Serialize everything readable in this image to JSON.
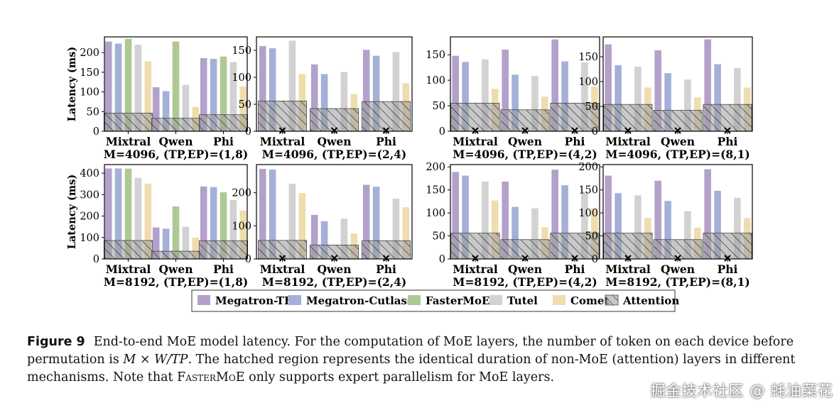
{
  "chart_data": [
    {
      "type": "bar",
      "title": "M=4096, (TP,EP)=(1,8)",
      "ylabel": "Latency (ms)",
      "ylim": [
        0,
        240
      ],
      "yticks": [
        0,
        50,
        100,
        150,
        200
      ],
      "categories": [
        "Mixtral",
        "Qwen",
        "Phi"
      ],
      "series": [
        {
          "name": "Megatron-TE",
          "values": [
            228,
            112,
            186
          ]
        },
        {
          "name": "Megatron-Cutlass",
          "values": [
            223,
            102,
            184
          ]
        },
        {
          "name": "FasterMoE",
          "values": [
            235,
            228,
            190
          ]
        },
        {
          "name": "Tutel",
          "values": [
            220,
            118,
            176
          ]
        },
        {
          "name": "Comet",
          "values": [
            178,
            62,
            114
          ]
        }
      ],
      "attention": [
        46,
        33,
        42
      ],
      "unsupported": []
    },
    {
      "type": "bar",
      "title": "M=4096, (TP,EP)=(2,4)",
      "ylabel": "",
      "ylim": [
        0,
        175
      ],
      "yticks": [
        0,
        50,
        100,
        150
      ],
      "categories": [
        "Mixtral",
        "Qwen",
        "Phi"
      ],
      "series": [
        {
          "name": "Megatron-TE",
          "values": [
            158,
            124,
            151
          ]
        },
        {
          "name": "Megatron-Cutlass",
          "values": [
            154,
            106,
            140
          ]
        },
        {
          "name": "FasterMoE",
          "values": [
            0,
            0,
            0
          ]
        },
        {
          "name": "Tutel",
          "values": [
            168,
            110,
            147
          ]
        },
        {
          "name": "Comet",
          "values": [
            106,
            69,
            89
          ]
        }
      ],
      "attention": [
        56,
        42,
        55
      ],
      "unsupported": [
        0,
        1,
        2
      ]
    },
    {
      "type": "bar",
      "title": "M=4096, (TP,EP)=(4,2)",
      "ylabel": "",
      "ylim": [
        0,
        185
      ],
      "yticks": [
        0,
        50,
        100,
        150
      ],
      "categories": [
        "Mixtral",
        "Qwen",
        "Phi"
      ],
      "series": [
        {
          "name": "Megatron-TE",
          "values": [
            148,
            160,
            180
          ]
        },
        {
          "name": "Megatron-Cutlass",
          "values": [
            136,
            111,
            137
          ]
        },
        {
          "name": "FasterMoE",
          "values": [
            0,
            0,
            0
          ]
        },
        {
          "name": "Tutel",
          "values": [
            141,
            108,
            135
          ]
        },
        {
          "name": "Comet",
          "values": [
            83,
            68,
            87
          ]
        }
      ],
      "attention": [
        55,
        42,
        55
      ],
      "unsupported": [
        0,
        1,
        2
      ]
    },
    {
      "type": "bar",
      "title": "M=4096, (TP,EP)=(8,1)",
      "ylabel": "",
      "ylim": [
        0,
        190
      ],
      "yticks": [
        0,
        50,
        100,
        150
      ],
      "categories": [
        "Mixtral",
        "Qwen",
        "Phi"
      ],
      "series": [
        {
          "name": "Megatron-TE",
          "values": [
            175,
            163,
            185
          ]
        },
        {
          "name": "Megatron-Cutlass",
          "values": [
            133,
            117,
            135
          ]
        },
        {
          "name": "FasterMoE",
          "values": [
            0,
            0,
            0
          ]
        },
        {
          "name": "Tutel",
          "values": [
            130,
            104,
            127
          ]
        },
        {
          "name": "Comet",
          "values": [
            88,
            68,
            88
          ]
        }
      ],
      "attention": [
        54,
        42,
        54
      ],
      "unsupported": [
        0,
        1,
        2
      ]
    },
    {
      "type": "bar",
      "title": "M=8192, (TP,EP)=(1,8)",
      "ylabel": "Latency (ms)",
      "ylim": [
        0,
        440
      ],
      "yticks": [
        0,
        100,
        200,
        300,
        400
      ],
      "categories": [
        "Mixtral",
        "Qwen",
        "Phi"
      ],
      "series": [
        {
          "name": "Megatron-TE",
          "values": [
            422,
            147,
            338
          ]
        },
        {
          "name": "Megatron-Cutlass",
          "values": [
            422,
            141,
            335
          ]
        },
        {
          "name": "FasterMoE",
          "values": [
            421,
            245,
            311
          ]
        },
        {
          "name": "Tutel",
          "values": [
            378,
            150,
            275
          ]
        },
        {
          "name": "Comet",
          "values": [
            351,
            99,
            226
          ]
        }
      ],
      "attention": [
        86,
        36,
        85
      ],
      "unsupported": []
    },
    {
      "type": "bar",
      "title": "M=8192, (TP,EP)=(2,4)",
      "ylabel": "",
      "ylim": [
        0,
        285
      ],
      "yticks": [
        0,
        100,
        200
      ],
      "categories": [
        "Mixtral",
        "Qwen",
        "Phi"
      ],
      "series": [
        {
          "name": "Megatron-TE",
          "values": [
            272,
            133,
            224
          ]
        },
        {
          "name": "Megatron-Cutlass",
          "values": [
            270,
            114,
            218
          ]
        },
        {
          "name": "FasterMoE",
          "values": [
            0,
            0,
            0
          ]
        },
        {
          "name": "Tutel",
          "values": [
            227,
            122,
            182
          ]
        },
        {
          "name": "Comet",
          "values": [
            199,
            77,
            156
          ]
        }
      ],
      "attention": [
        56,
        42,
        55
      ],
      "unsupported": [
        0,
        1,
        2
      ]
    },
    {
      "type": "bar",
      "title": "M=8192, (TP,EP)=(4,2)",
      "ylabel": "",
      "ylim": [
        0,
        205
      ],
      "yticks": [
        0,
        50,
        100,
        150,
        200
      ],
      "categories": [
        "Mixtral",
        "Qwen",
        "Phi"
      ],
      "series": [
        {
          "name": "Megatron-TE",
          "values": [
            189,
            168,
            194
          ]
        },
        {
          "name": "Megatron-Cutlass",
          "values": [
            181,
            113,
            160
          ]
        },
        {
          "name": "FasterMoE",
          "values": [
            0,
            0,
            0
          ]
        },
        {
          "name": "Tutel",
          "values": [
            168,
            110,
            145
          ]
        },
        {
          "name": "Comet",
          "values": [
            127,
            69,
            110
          ]
        }
      ],
      "attention": [
        56,
        42,
        56
      ],
      "unsupported": [
        0,
        1,
        2
      ]
    },
    {
      "type": "bar",
      "title": "M=8192, (TP,EP)=(8,1)",
      "ylabel": "",
      "ylim": [
        0,
        205
      ],
      "yticks": [
        0,
        50,
        100,
        150,
        200
      ],
      "categories": [
        "Mixtral",
        "Qwen",
        "Phi"
      ],
      "series": [
        {
          "name": "Megatron-TE",
          "values": [
            181,
            170,
            195
          ]
        },
        {
          "name": "Megatron-Cutlass",
          "values": [
            143,
            126,
            148
          ]
        },
        {
          "name": "FasterMoE",
          "values": [
            0,
            0,
            0
          ]
        },
        {
          "name": "Tutel",
          "values": [
            138,
            104,
            133
          ]
        },
        {
          "name": "Comet",
          "values": [
            89,
            68,
            89
          ]
        }
      ],
      "attention": [
        56,
        42,
        56
      ],
      "unsupported": [
        0,
        1,
        2
      ]
    }
  ],
  "legend": {
    "entries": [
      {
        "name": "Megatron-TE",
        "color": "#b3a1cc"
      },
      {
        "name": "Megatron-Cutlass",
        "color": "#a5b0d8"
      },
      {
        "name": "FasterMoE",
        "color": "#aec993"
      },
      {
        "name": "Tutel",
        "color": "#d2d2d2"
      },
      {
        "name": "Comet",
        "color": "#f0dcae"
      },
      {
        "name": "Attention",
        "color": "#aaaaaa",
        "hatch": true
      }
    ]
  },
  "caption": {
    "label": "Figure 9",
    "p1": "End-to-end MoE model latency. For the computation of MoE layers, the number of token on each device before permutation is ",
    "math": "M × W/TP",
    "p2": ". The hatched region represents the identical duration of non-MoE (attention) layers in different mechanisms. Note that ",
    "sc": "FasterMoE",
    "p3": " only supports expert parallelism for MoE layers."
  },
  "watermark": "掘金技术社区 @ 蚝油菜花"
}
